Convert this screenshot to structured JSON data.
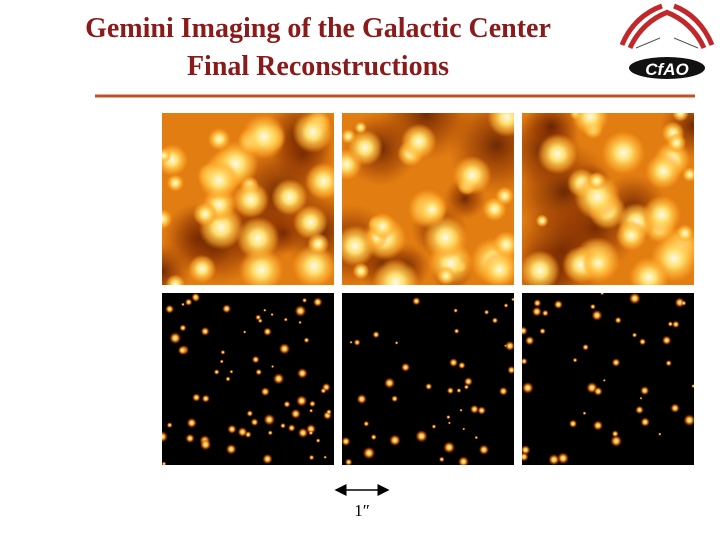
{
  "header": {
    "title_line1": "Gemini Imaging of the Galactic Center",
    "title_line2": "Final Reconstructions"
  },
  "logo": {
    "text": "CfAO"
  },
  "scale_bar": {
    "label": "1″"
  }
}
